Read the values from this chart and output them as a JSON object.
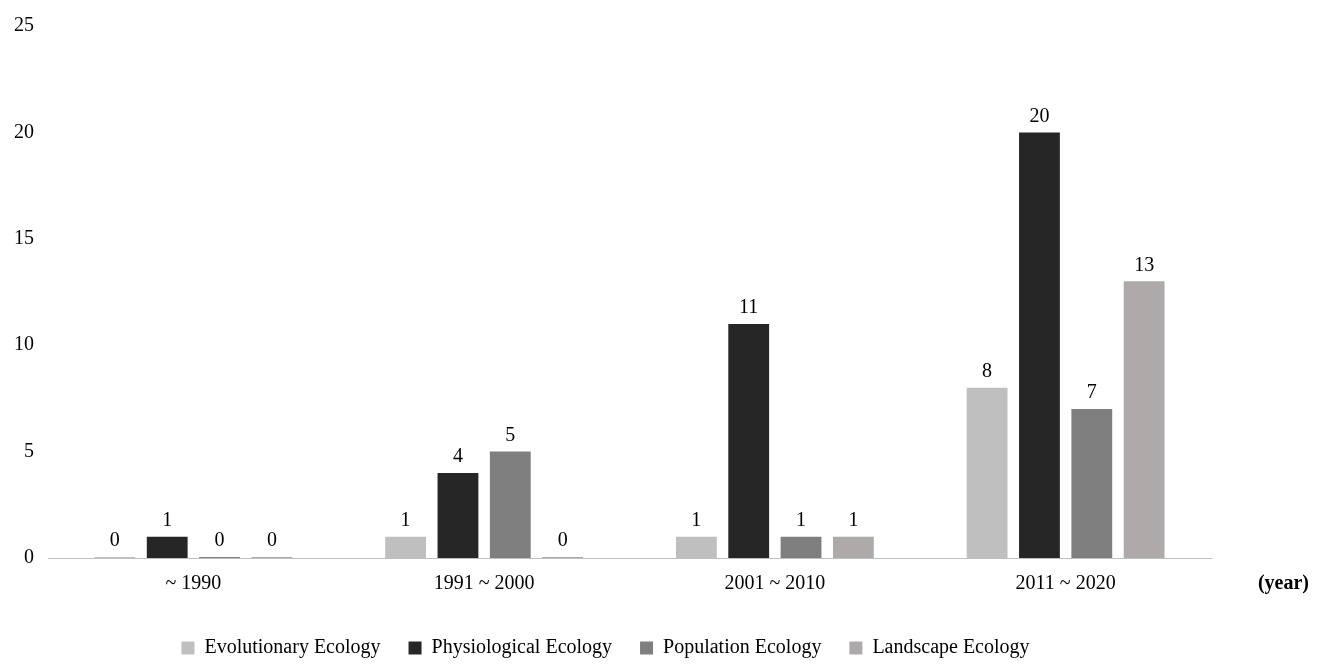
{
  "chart_data": {
    "type": "bar",
    "xlabel": "(year)",
    "categories": [
      "~ 1990",
      "1991 ~ 2000",
      "2001 ~ 2010",
      "2011 ~ 2020"
    ],
    "series": [
      {
        "name": "Evolutionary Ecology",
        "color": "#bfbfbf",
        "values": [
          0,
          1,
          1,
          8
        ]
      },
      {
        "name": "Physiological Ecology",
        "color": "#262626",
        "values": [
          1,
          4,
          11,
          20
        ]
      },
      {
        "name": "Population Ecology",
        "color": "#7f7f7f",
        "values": [
          0,
          5,
          1,
          7
        ]
      },
      {
        "name": "Landscape Ecology",
        "color": "#aeaaaa",
        "values": [
          0,
          0,
          1,
          13
        ]
      }
    ],
    "ylim": [
      0,
      25
    ],
    "yticks": [
      0,
      5,
      10,
      15,
      20,
      25
    ],
    "grid": false,
    "legend": "bottom",
    "data_labels": true
  }
}
